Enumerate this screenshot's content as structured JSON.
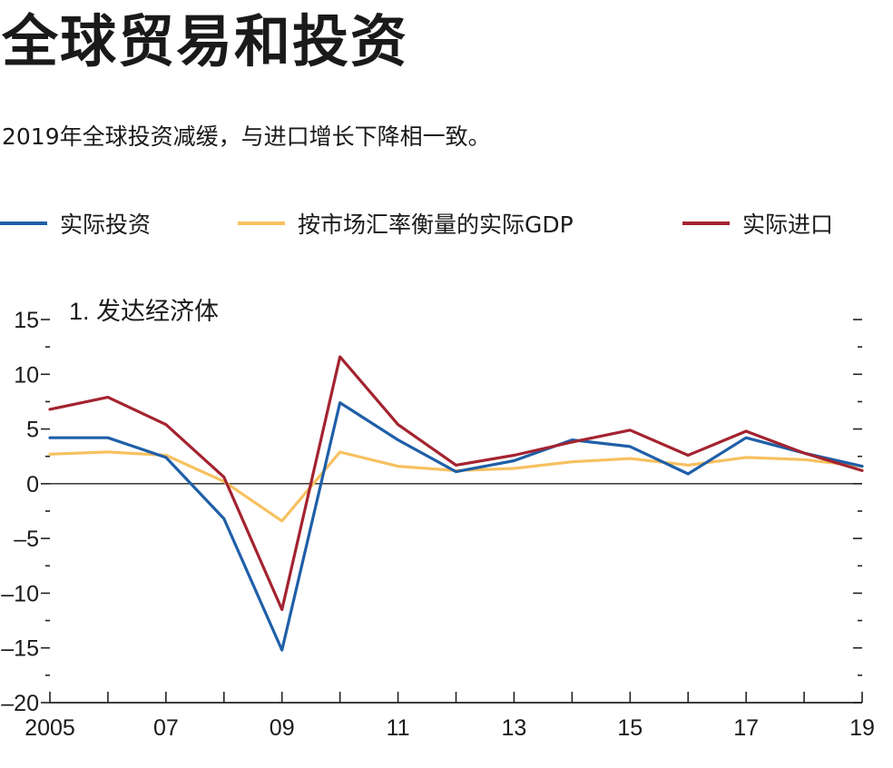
{
  "title": "全球贸易和投资",
  "subtitle": "2019年全球投资减缓，与进口增长下降相一致。",
  "colors": {
    "investment": "#1f5fa8",
    "gdp": "#f7c160",
    "imports": "#a3232f",
    "axis": "#222222"
  },
  "chart_data": {
    "type": "line",
    "panel_title": "1. 发达经济体",
    "x": [
      2005,
      2006,
      2007,
      2008,
      2009,
      2010,
      2011,
      2012,
      2013,
      2014,
      2015,
      2016,
      2017,
      2018,
      2019
    ],
    "x_tick_labels": [
      "2005",
      "07",
      "09",
      "11",
      "13",
      "15",
      "17",
      "19"
    ],
    "x_tick_values": [
      2005,
      2007,
      2009,
      2011,
      2013,
      2015,
      2017,
      2019
    ],
    "y_tick_labels": [
      "15",
      "10",
      "5",
      "0",
      "–5",
      "–10",
      "–15",
      "–20"
    ],
    "y_tick_values": [
      15,
      10,
      5,
      0,
      -5,
      -10,
      -15,
      -20
    ],
    "ylim": [
      -20,
      15
    ],
    "xlim": [
      2005,
      2019
    ],
    "zero_line": true,
    "series": [
      {
        "name": "实际投资",
        "color_key": "investment",
        "values": [
          4.2,
          4.2,
          2.4,
          -3.2,
          -15.2,
          7.4,
          4.0,
          1.1,
          2.1,
          4.0,
          3.4,
          0.9,
          4.2,
          2.8,
          1.6
        ]
      },
      {
        "name": "按市场汇率衡量的实际GDP",
        "color_key": "gdp",
        "values": [
          2.7,
          2.9,
          2.6,
          0.2,
          -3.4,
          2.9,
          1.6,
          1.2,
          1.4,
          2.0,
          2.3,
          1.7,
          2.4,
          2.2,
          1.6
        ]
      },
      {
        "name": "实际进口",
        "color_key": "imports",
        "values": [
          6.8,
          7.9,
          5.4,
          0.6,
          -11.5,
          11.6,
          5.4,
          1.7,
          2.6,
          3.8,
          4.9,
          2.6,
          4.8,
          2.8,
          1.2
        ]
      }
    ]
  }
}
